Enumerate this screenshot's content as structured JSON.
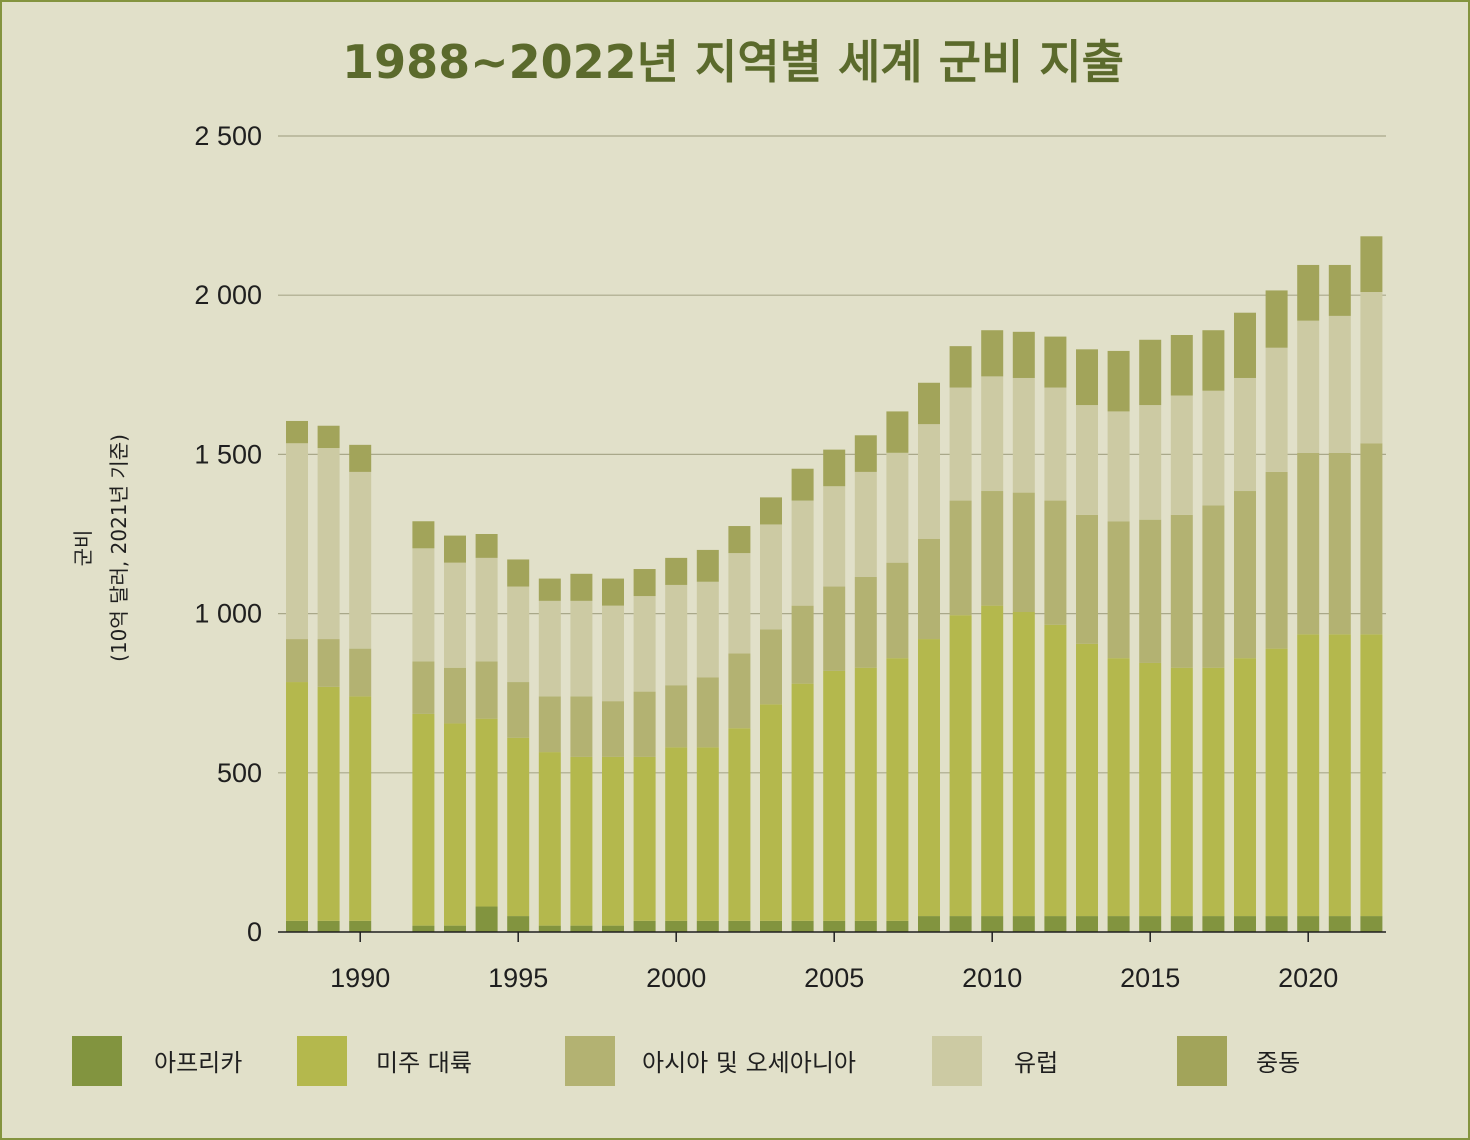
{
  "chart_data": {
    "type": "bar",
    "stacked": true,
    "title": "1988~2022년 지역별 세계 군비 지출",
    "ylabel": "군비",
    "ylabel_sub": "(10억 달러, 2021년 기준)",
    "xlabel": "",
    "ylim": [
      0,
      2500
    ],
    "yticks": [
      0,
      500,
      1000,
      1500,
      2000,
      2500
    ],
    "ytick_labels": [
      "0",
      "500",
      "1 000",
      "1 500",
      "2 000",
      "2 500"
    ],
    "xticks": [
      1990,
      1995,
      2000,
      2005,
      2010,
      2015,
      2020
    ],
    "xtick_labels": [
      "1990",
      "1995",
      "2000",
      "2005",
      "2010",
      "2015",
      "2020"
    ],
    "x": [
      1988,
      1989,
      1990,
      1991,
      1992,
      1993,
      1994,
      1995,
      1996,
      1997,
      1998,
      1999,
      2000,
      2001,
      2002,
      2003,
      2004,
      2005,
      2006,
      2007,
      2008,
      2009,
      2010,
      2011,
      2012,
      2013,
      2014,
      2015,
      2016,
      2017,
      2018,
      2019,
      2020,
      2021,
      2022
    ],
    "series": [
      {
        "name": "아프리카",
        "color": "#82943f",
        "values": [
          35,
          35,
          35,
          null,
          20,
          20,
          80,
          50,
          20,
          20,
          20,
          35,
          35,
          35,
          35,
          35,
          35,
          35,
          35,
          35,
          50,
          50,
          50,
          50,
          50,
          50,
          50,
          50,
          50,
          50,
          50,
          50,
          50,
          50,
          50
        ]
      },
      {
        "name": "미주 대륙",
        "color": "#b4b84d",
        "values": [
          750,
          735,
          705,
          null,
          665,
          635,
          590,
          560,
          545,
          530,
          530,
          515,
          545,
          545,
          605,
          680,
          745,
          785,
          795,
          825,
          870,
          945,
          975,
          955,
          915,
          855,
          810,
          795,
          780,
          780,
          810,
          840,
          885,
          885,
          885
        ]
      },
      {
        "name": "아시아 및 오세아니아",
        "color": "#b3b272",
        "values": [
          135,
          150,
          150,
          null,
          165,
          175,
          180,
          175,
          175,
          190,
          175,
          205,
          195,
          220,
          235,
          235,
          245,
          265,
          285,
          300,
          315,
          360,
          360,
          375,
          390,
          405,
          430,
          450,
          480,
          510,
          525,
          555,
          570,
          570,
          600
        ]
      },
      {
        "name": "유럽",
        "color": "#cccaa3",
        "values": [
          615,
          600,
          555,
          null,
          355,
          330,
          325,
          300,
          300,
          300,
          300,
          300,
          315,
          300,
          315,
          330,
          330,
          315,
          330,
          345,
          360,
          355,
          360,
          360,
          355,
          345,
          345,
          360,
          375,
          360,
          355,
          390,
          415,
          430,
          475
        ]
      },
      {
        "name": "중동",
        "color": "#a2a45a",
        "values": [
          70,
          70,
          85,
          null,
          85,
          85,
          75,
          85,
          70,
          85,
          85,
          85,
          85,
          100,
          85,
          85,
          100,
          115,
          115,
          130,
          130,
          130,
          145,
          145,
          160,
          175,
          190,
          205,
          190,
          190,
          205,
          180,
          175,
          160,
          175
        ]
      }
    ],
    "legend_position": "bottom"
  }
}
